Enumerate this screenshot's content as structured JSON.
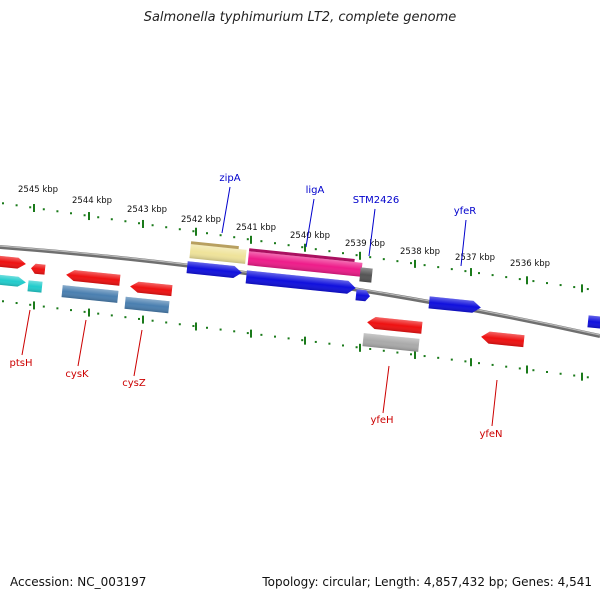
{
  "title": "Salmonella typhimurium LT2, complete genome",
  "accession": "Accession: NC_003197",
  "topology": "Topology: circular; Length: 4,857,432 bp; Genes: 4,541",
  "colors": {
    "backbone": "#8a8a8a",
    "tick": "#1a7a1a",
    "forward_label": "#0000cc",
    "reverse_label": "#cc0000",
    "blue_gene": "#1010dd",
    "red_gene": "#ee1111",
    "cyan_gene": "#22cccc",
    "steel_gene": "#4a7fb0",
    "yellow_gene": "#efe39a",
    "magenta_gene": "#ee1c8a",
    "grey_gene": "#aaaaaa"
  },
  "scale_labels": [
    "2545 kbp",
    "2544 kbp",
    "2543 kbp",
    "2542 kbp",
    "2541 kbp",
    "2540 kbp",
    "2539 kbp",
    "2538 kbp",
    "2537 kbp",
    "2536 kbp"
  ],
  "forward_gene_labels": [
    "zipA",
    "ligA",
    "STM2426",
    "yfeR"
  ],
  "reverse_gene_labels": [
    "ptsH",
    "cysK",
    "cysZ",
    "yfeH",
    "yfeN"
  ]
}
